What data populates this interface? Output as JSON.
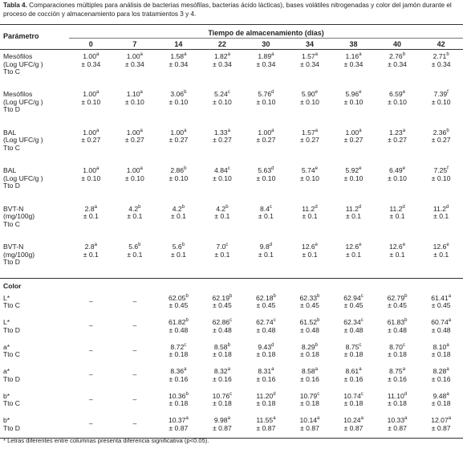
{
  "caption": {
    "label": "Tabla 4.",
    "text": "Comparaciones múltiples para análisis de bacterias mesófilas, bacterias ácido lácticas), bases volátiles nitrogenadas y color del jamón durante el proceso de cocción y almacenamiento para los tratamientos 3 y 4."
  },
  "table": {
    "header": {
      "param": "Parámetro",
      "group": "Tiempo de almacenamiento (días)",
      "days": [
        "0",
        "7",
        "14",
        "22",
        "30",
        "34",
        "38",
        "40",
        "42"
      ]
    },
    "rows": [
      {
        "param": [
          "Mesófilos",
          "(Log UFC/g )",
          "Tto C"
        ],
        "cells": [
          {
            "value": "1.00",
            "sup": "a",
            "sd": "± 0.34"
          },
          {
            "value": "1.00",
            "sup": "a",
            "sd": "± 0.34"
          },
          {
            "value": "1.58",
            "sup": "a",
            "sd": "± 0.34"
          },
          {
            "value": "1.82",
            "sup": "a",
            "sd": "± 0.34"
          },
          {
            "value": "1.89",
            "sup": "a",
            "sd": "± 0.34"
          },
          {
            "value": "1.57",
            "sup": "a",
            "sd": "± 0.34"
          },
          {
            "value": "1.16",
            "sup": "a",
            "sd": "± 0.34"
          },
          {
            "value": "2.76",
            "sup": "b",
            "sd": "± 0.34"
          },
          {
            "value": "2.71",
            "sup": "b",
            "sd": "± 0.34"
          }
        ]
      },
      {
        "param": [
          "Mesófilos",
          "(Log UFC/g )",
          "Tto D"
        ],
        "cells": [
          {
            "value": "1.00",
            "sup": "a",
            "sd": "± 0.10"
          },
          {
            "value": "1.10",
            "sup": "a",
            "sd": "± 0.10"
          },
          {
            "value": "3.06",
            "sup": "b",
            "sd": "± 0.10"
          },
          {
            "value": "5.24",
            "sup": "c",
            "sd": "± 0.10"
          },
          {
            "value": "5.76",
            "sup": "d",
            "sd": "± 0.10"
          },
          {
            "value": "5.90",
            "sup": "e",
            "sd": "± 0.10"
          },
          {
            "value": "5.96",
            "sup": "e",
            "sd": "± 0.10"
          },
          {
            "value": "6.59",
            "sup": "e",
            "sd": "± 0.10"
          },
          {
            "value": "7.39",
            "sup": "f",
            "sd": "± 0.10"
          }
        ]
      },
      {
        "param": [
          "BAL",
          "(Log UFC/g )",
          "Tto C"
        ],
        "cells": [
          {
            "value": "1.00",
            "sup": "a",
            "sd": "± 0.27"
          },
          {
            "value": "1.00",
            "sup": "a",
            "sd": "± 0.27"
          },
          {
            "value": "1.00",
            "sup": "a",
            "sd": "± 0.27"
          },
          {
            "value": "1.33",
            "sup": "a",
            "sd": "± 0.27"
          },
          {
            "value": "1.00",
            "sup": "a",
            "sd": "± 0.27"
          },
          {
            "value": "1.57",
            "sup": "a",
            "sd": "± 0.27"
          },
          {
            "value": "1.00",
            "sup": "a",
            "sd": "± 0.27"
          },
          {
            "value": "1.23",
            "sup": "a",
            "sd": "± 0.27"
          },
          {
            "value": "2.36",
            "sup": "b",
            "sd": "± 0.27"
          }
        ]
      },
      {
        "param": [
          "BAL",
          "(Log UFC/g )",
          "Tto D"
        ],
        "cells": [
          {
            "value": "1.00",
            "sup": "a",
            "sd": "± 0.10"
          },
          {
            "value": "1.00",
            "sup": "a",
            "sd": "± 0.10"
          },
          {
            "value": "2.86",
            "sup": "b",
            "sd": "± 0.10"
          },
          {
            "value": "4.84",
            "sup": "c",
            "sd": "± 0.10"
          },
          {
            "value": "5.63",
            "sup": "d",
            "sd": "± 0.10"
          },
          {
            "value": "5.74",
            "sup": "e",
            "sd": "± 0.10"
          },
          {
            "value": "5.92",
            "sup": "e",
            "sd": "± 0.10"
          },
          {
            "value": "6.49",
            "sup": "e",
            "sd": "± 0.10"
          },
          {
            "value": "7.25",
            "sup": "f",
            "sd": "± 0.10"
          }
        ]
      },
      {
        "param": [
          "BVT-N",
          "(mg/100g)",
          "Tto C"
        ],
        "cells": [
          {
            "value": "2.8",
            "sup": "a",
            "sd": "± 0.1"
          },
          {
            "value": "4.2",
            "sup": "b",
            "sd": "± 0.1"
          },
          {
            "value": "4.2",
            "sup": "b",
            "sd": "± 0.1"
          },
          {
            "value": "4.2",
            "sup": "b",
            "sd": "± 0.1"
          },
          {
            "value": "8.4",
            "sup": "c",
            "sd": "± 0.1"
          },
          {
            "value": "11.2",
            "sup": "d",
            "sd": "± 0.1"
          },
          {
            "value": "11.2",
            "sup": "d",
            "sd": "± 0.1"
          },
          {
            "value": "11.2",
            "sup": "d",
            "sd": "± 0.1"
          },
          {
            "value": "11.2",
            "sup": "d",
            "sd": "± 0.1"
          }
        ]
      },
      {
        "param": [
          "BVT-N",
          "(mg/100g)",
          "Tto D"
        ],
        "cells": [
          {
            "value": "2.8",
            "sup": "a",
            "sd": "± 0.1"
          },
          {
            "value": "5.6",
            "sup": "b",
            "sd": "± 0.1"
          },
          {
            "value": "5.6",
            "sup": "b",
            "sd": "± 0.1"
          },
          {
            "value": "7.0",
            "sup": "c",
            "sd": "± 0.1"
          },
          {
            "value": "9.8",
            "sup": "d",
            "sd": "± 0.1"
          },
          {
            "value": "12.6",
            "sup": "e",
            "sd": "± 0.1"
          },
          {
            "value": "12.6",
            "sup": "e",
            "sd": "± 0.1"
          },
          {
            "value": "12.6",
            "sup": "e",
            "sd": "± 0.1"
          },
          {
            "value": "12.6",
            "sup": "e",
            "sd": "± 0.1"
          }
        ]
      }
    ],
    "section": "Color",
    "color_rows": [
      {
        "param": [
          "L*",
          "Tto C"
        ],
        "cells": [
          "–",
          "–",
          {
            "value": "62.05",
            "sup": "b",
            "sd": "± 0.45"
          },
          {
            "value": "62.19",
            "sup": "b",
            "sd": "± 0.45"
          },
          {
            "value": "62.18",
            "sup": "b",
            "sd": "± 0.45"
          },
          {
            "value": "62.33",
            "sup": "b",
            "sd": "± 0.45"
          },
          {
            "value": "62.94",
            "sup": "c",
            "sd": "± 0.45"
          },
          {
            "value": "62.79",
            "sup": "b",
            "sd": "± 0.45"
          },
          {
            "value": "61.41",
            "sup": "a",
            "sd": "± 0.45"
          }
        ]
      },
      {
        "param": [
          "L*",
          "Tto D"
        ],
        "cells": [
          "–",
          "–",
          {
            "value": "61.82",
            "sup": "b",
            "sd": "± 0.48"
          },
          {
            "value": "62.86",
            "sup": "c",
            "sd": "± 0.48"
          },
          {
            "value": "62.74",
            "sup": "c",
            "sd": "± 0.48"
          },
          {
            "value": "61.52",
            "sup": "b",
            "sd": "± 0.48"
          },
          {
            "value": "62.34",
            "sup": "c",
            "sd": "± 0.48"
          },
          {
            "value": "61.83",
            "sup": "b",
            "sd": "± 0.48"
          },
          {
            "value": "60.74",
            "sup": "a",
            "sd": "± 0.48"
          }
        ]
      },
      {
        "param": [
          "a*",
          "Tto C"
        ],
        "cells": [
          "–",
          "–",
          {
            "value": "8.72",
            "sup": "c",
            "sd": "± 0.18"
          },
          {
            "value": "8.58",
            "sup": "b",
            "sd": "± 0.18"
          },
          {
            "value": "9.43",
            "sup": "d",
            "sd": "± 0.18"
          },
          {
            "value": "8.29",
            "sup": "b",
            "sd": "± 0.18"
          },
          {
            "value": "8.75",
            "sup": "c",
            "sd": "± 0.18"
          },
          {
            "value": "8.70",
            "sup": "c",
            "sd": "± 0.18"
          },
          {
            "value": "8.10",
            "sup": "a",
            "sd": "± 0.18"
          }
        ]
      },
      {
        "param": [
          "a*",
          "Tto D"
        ],
        "cells": [
          "–",
          "–",
          {
            "value": "8.36",
            "sup": "a",
            "sd": "± 0.16"
          },
          {
            "value": "8.32",
            "sup": "a",
            "sd": "± 0.16"
          },
          {
            "value": "8.31",
            "sup": "a",
            "sd": "± 0.16"
          },
          {
            "value": "8.58",
            "sup": "a",
            "sd": "± 0.16"
          },
          {
            "value": "8.61",
            "sup": "a",
            "sd": "± 0.16"
          },
          {
            "value": "8.75",
            "sup": "a",
            "sd": "± 0.16"
          },
          {
            "value": "8.28",
            "sup": "a",
            "sd": "± 0.16"
          }
        ]
      },
      {
        "param": [
          "b*",
          "Tto C"
        ],
        "cells": [
          "–",
          "–",
          {
            "value": "10.36",
            "sup": "b",
            "sd": "± 0.18"
          },
          {
            "value": "10.76",
            "sup": "c",
            "sd": "± 0.18"
          },
          {
            "value": "11.20",
            "sup": "d",
            "sd": "± 0.18"
          },
          {
            "value": "10.79",
            "sup": "c",
            "sd": "± 0.18"
          },
          {
            "value": "10.74",
            "sup": "c",
            "sd": "± 0.18"
          },
          {
            "value": "11.10",
            "sup": "d",
            "sd": "± 0.18"
          },
          {
            "value": "9.48",
            "sup": "a",
            "sd": "± 0.18"
          }
        ]
      },
      {
        "param": [
          "b*",
          "Tto D"
        ],
        "cells": [
          "–",
          "–",
          {
            "value": "10.37",
            "sup": "a",
            "sd": "± 0.87"
          },
          {
            "value": "9.98",
            "sup": "a",
            "sd": "± 0.87"
          },
          {
            "value": "11.55",
            "sup": "a",
            "sd": "± 0.87"
          },
          {
            "value": "10.14",
            "sup": "a",
            "sd": "± 0.87"
          },
          {
            "value": "10.24",
            "sup": "a",
            "sd": "± 0.87"
          },
          {
            "value": "10.33",
            "sup": "a",
            "sd": "± 0.87"
          },
          {
            "value": "12.07",
            "sup": "a",
            "sd": "± 0.87"
          }
        ]
      }
    ]
  },
  "footnote": "* Letras diferentes entre columnas presenta diferencia significativa (p<0.05)."
}
